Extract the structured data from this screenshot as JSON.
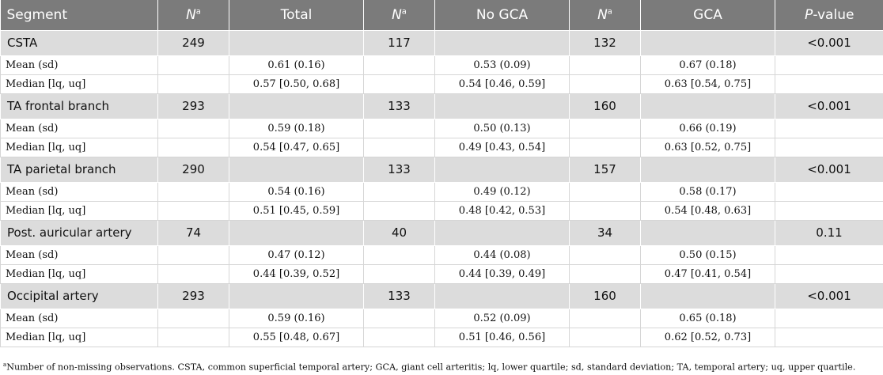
{
  "header": {
    "segment": "Segment",
    "n_symbol": "N",
    "n_sup": "a",
    "total": "Total",
    "no_gca": "No GCA",
    "gca": "GCA",
    "p_italic": "P",
    "p_rest": "-value"
  },
  "segments": [
    {
      "name": "CSTA",
      "n_total": "249",
      "n_no_gca": "117",
      "n_gca": "132",
      "p_value": "<0.001",
      "mean_label": "Mean (sd)",
      "mean_total": "0.61 (0.16)",
      "mean_no_gca": "0.53 (0.09)",
      "mean_gca": "0.67 (0.18)",
      "median_label": "Median [lq, uq]",
      "median_total": "0.57 [0.50, 0.68]",
      "median_no_gca": "0.54 [0.46, 0.59]",
      "median_gca": "0.63 [0.54, 0.75]"
    },
    {
      "name": "TA frontal branch",
      "n_total": "293",
      "n_no_gca": "133",
      "n_gca": "160",
      "p_value": "<0.001",
      "mean_label": "Mean (sd)",
      "mean_total": "0.59 (0.18)",
      "mean_no_gca": "0.50 (0.13)",
      "mean_gca": "0.66 (0.19)",
      "median_label": "Median [lq, uq]",
      "median_total": "0.54 [0.47, 0.65]",
      "median_no_gca": "0.49 [0.43, 0.54]",
      "median_gca": "0.63 [0.52, 0.75]"
    },
    {
      "name": "TA parietal branch",
      "n_total": "290",
      "n_no_gca": "133",
      "n_gca": "157",
      "p_value": "<0.001",
      "mean_label": "Mean (sd)",
      "mean_total": "0.54 (0.16)",
      "mean_no_gca": "0.49 (0.12)",
      "mean_gca": "0.58 (0.17)",
      "median_label": "Median [lq, uq]",
      "median_total": "0.51 [0.45, 0.59]",
      "median_no_gca": "0.48 [0.42, 0.53]",
      "median_gca": "0.54 [0.48, 0.63]"
    },
    {
      "name": "Post. auricular artery",
      "n_total": "74",
      "n_no_gca": "40",
      "n_gca": "34",
      "p_value": "0.11",
      "mean_label": "Mean (sd)",
      "mean_total": "0.47 (0.12)",
      "mean_no_gca": "0.44 (0.08)",
      "mean_gca": "0.50 (0.15)",
      "median_label": "Median [lq, uq]",
      "median_total": "0.44 [0.39, 0.52]",
      "median_no_gca": "0.44 [0.39, 0.49]",
      "median_gca": "0.47 [0.41, 0.54]"
    },
    {
      "name": "Occipital artery",
      "n_total": "293",
      "n_no_gca": "133",
      "n_gca": "160",
      "p_value": "<0.001",
      "mean_label": "Mean (sd)",
      "mean_total": "0.59 (0.16)",
      "mean_no_gca": "0.52 (0.09)",
      "mean_gca": "0.65 (0.18)",
      "median_label": "Median [lq, uq]",
      "median_total": "0.55 [0.48, 0.67]",
      "median_no_gca": "0.51 [0.46, 0.56]",
      "median_gca": "0.62 [0.52, 0.73]"
    }
  ],
  "footnote": {
    "marker": "a",
    "text": "Number of non-missing observations. CSTA, common superficial temporal artery; GCA, giant cell arteritis; lq, lower quartile; sd, standard deviation; TA, temporal artery; uq, upper quartile."
  },
  "colors": {
    "header_bg": "#7b7b7b",
    "segment_row_bg": "#dcdcdc",
    "text": "#111111"
  }
}
